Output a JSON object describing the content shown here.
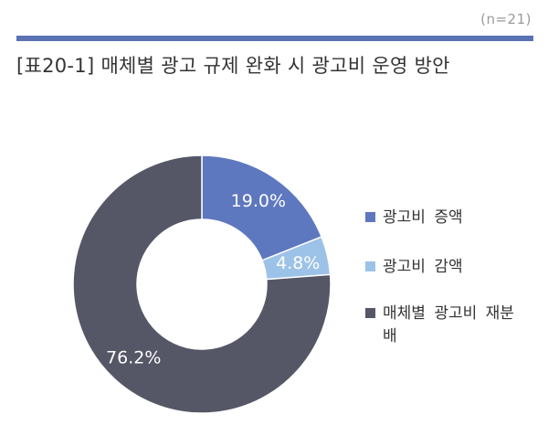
{
  "header": {
    "sample_size": "(n=21)",
    "title": "[표20-1] 매체별 광고 규제 완화 시 광고비 운영 방안"
  },
  "chart_data": {
    "type": "pie",
    "donut": true,
    "title": "[표20-1] 매체별 광고 규제 완화 시 광고비 운영 방안",
    "unit": "%",
    "categories": [
      "광고비 증액",
      "광고비 감액",
      "매체별 광고비 재분배"
    ],
    "values": [
      19.0,
      4.8,
      76.2
    ],
    "data_labels": [
      "19.0%",
      "4.8%",
      "76.2%"
    ],
    "colors": [
      "#5e78bf",
      "#9cc2e8",
      "#555666"
    ],
    "label_colors": [
      "#ffffff",
      "#ffffff",
      "#ffffff"
    ],
    "legend_position": "right",
    "start_angle_deg": 0,
    "direction": "clockwise"
  }
}
